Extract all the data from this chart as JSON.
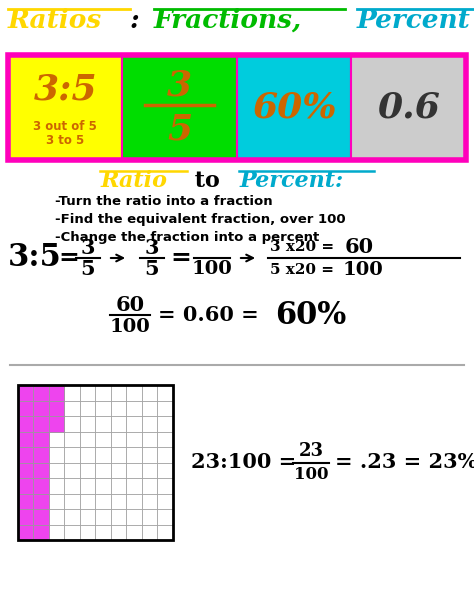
{
  "bg_color": "#FFFFFF",
  "box_border_color": "#FF00BB",
  "boxes": [
    {
      "bg": "#FFFF00",
      "label": "3:5",
      "sublabel": "3 out of 5\n3 to 5",
      "text_color": "#CC6600",
      "frac": false
    },
    {
      "bg": "#00DD00",
      "label_num": "3",
      "label_den": "5",
      "text_color": "#CC6600",
      "frac": true
    },
    {
      "bg": "#00CCDD",
      "label": "60%",
      "text_color": "#CC6600",
      "frac": false
    },
    {
      "bg": "#CCCCCC",
      "label": "0.6",
      "text_color": "#333333",
      "frac": false
    }
  ],
  "title_ratios_color": "#FFD700",
  "title_fractions_color": "#00BB00",
  "title_percent_color": "#00AACC",
  "title_and_color": "#888888",
  "title_decimals_color": "#888888",
  "ratio_title_ratio_color": "#FFD700",
  "ratio_title_percent_color": "#00AACC",
  "steps": [
    "-Turn the ratio into a fraction",
    "-Find the equivalent fraction, over 100",
    "-Change the fraction into a percent"
  ],
  "grid_color": "#999999",
  "pink_color": "#EE44EE",
  "grid_cols": 10,
  "grid_rows": 10
}
